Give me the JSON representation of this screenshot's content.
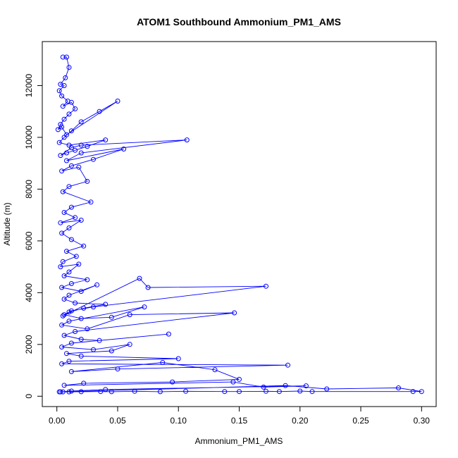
{
  "chart_data": {
    "type": "line",
    "title": "ATOM1 Southbound Ammonium_PM1_AMS",
    "xlabel": "Ammonium_PM1_AMS",
    "ylabel": "Altitude (m)",
    "xlim": [
      -0.012,
      0.312
    ],
    "ylim": [
      -400,
      13700
    ],
    "xticks": [
      0.0,
      0.05,
      0.1,
      0.15,
      0.2,
      0.25,
      0.3
    ],
    "xtick_labels": [
      "0.00",
      "0.05",
      "0.10",
      "0.15",
      "0.20",
      "0.25",
      "0.30"
    ],
    "yticks": [
      0,
      2000,
      4000,
      6000,
      8000,
      10000,
      12000
    ],
    "ytick_labels": [
      "0",
      "2000",
      "4000",
      "6000",
      "8000",
      "10000",
      "12000"
    ],
    "grid": false,
    "legend": "none",
    "color": "#0000ff",
    "markers": "open-circle",
    "series": [
      {
        "x": [
          0.005,
          0.008,
          0.01,
          0.007,
          0.003,
          0.006,
          0.002,
          0.004,
          0.009,
          0.005,
          0.012,
          0.015,
          0.01,
          0.006,
          0.003,
          0.001,
          0.004,
          0.008,
          0.05,
          0.035,
          0.02,
          0.012,
          0.006,
          0.002,
          0.01,
          0.04,
          0.025,
          0.015,
          0.008,
          0.003,
          0.012,
          0.02,
          0.107,
          0.02,
          0.008,
          0.055,
          0.03,
          0.012,
          0.004,
          0.018,
          0.025,
          0.01,
          0.005,
          0.028,
          0.012,
          0.006,
          0.015,
          0.003,
          0.02,
          0.01,
          0.004,
          0.012,
          0.022,
          0.008,
          0.016,
          0.005,
          0.003,
          0.018,
          0.01,
          0.006,
          0.025,
          0.012,
          0.004,
          0.02,
          0.033,
          0.01,
          0.006,
          0.015,
          0.04,
          0.022,
          0.01,
          0.005,
          0.068,
          0.075,
          0.172,
          0.03,
          0.012,
          0.006,
          0.02,
          0.045,
          0.072,
          0.01,
          0.004,
          0.025,
          0.06,
          0.146,
          0.015,
          0.006,
          0.02,
          0.035,
          0.092,
          0.012,
          0.004,
          0.03,
          0.06,
          0.045,
          0.008,
          0.02,
          0.1,
          0.01,
          0.004,
          0.19,
          0.05,
          0.012,
          0.087,
          0.13,
          0.15,
          0.095,
          0.022,
          0.006,
          0.145,
          0.17,
          0.205,
          0.04,
          0.012,
          0.003,
          0.188,
          0.222,
          0.281,
          0.3,
          0.293,
          0.21,
          0.2,
          0.183,
          0.172,
          0.15,
          0.138,
          0.106,
          0.085,
          0.064,
          0.045,
          0.036,
          0.02,
          0.01,
          0.005,
          0.002
        ],
        "y": [
          13100,
          13100,
          12700,
          12300,
          12050,
          12000,
          11800,
          11600,
          11400,
          11200,
          11350,
          11100,
          10900,
          10700,
          10500,
          10300,
          10400,
          10100,
          11400,
          11000,
          10600,
          10250,
          10000,
          9800,
          9700,
          9900,
          9650,
          9500,
          9400,
          9300,
          9600,
          9700,
          9900,
          9400,
          9100,
          9550,
          9150,
          8900,
          8700,
          8850,
          8300,
          8100,
          7900,
          7500,
          7300,
          7100,
          6900,
          6700,
          6800,
          6500,
          6300,
          6050,
          5800,
          5600,
          5400,
          5200,
          5000,
          5100,
          4800,
          4650,
          4500,
          4350,
          4200,
          4050,
          4300,
          3900,
          3750,
          3600,
          3550,
          3400,
          3250,
          3100,
          4550,
          4200,
          4250,
          3450,
          3300,
          3150,
          3000,
          3050,
          3450,
          2900,
          2750,
          2600,
          3150,
          3220,
          2500,
          2350,
          2200,
          2150,
          2400,
          2050,
          1900,
          1800,
          2000,
          1750,
          1650,
          1550,
          1450,
          1350,
          1250,
          1200,
          1050,
          950,
          1300,
          1020,
          650,
          550,
          500,
          420,
          550,
          350,
          400,
          260,
          200,
          170,
          410,
          280,
          320,
          180,
          180,
          180,
          200,
          180,
          190,
          180,
          180,
          190,
          175,
          190,
          175,
          180,
          175,
          170,
          170,
          170
        ]
      }
    ]
  }
}
